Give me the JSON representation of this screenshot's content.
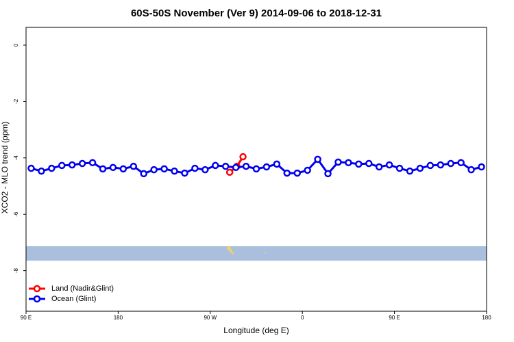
{
  "chart_data": {
    "type": "line",
    "title": "60S-50S November (Ver 9)   2014-09-06 to 2018-12-31",
    "xlabel": "Longitude (deg E)",
    "ylabel": "XCO2 - MLO trend (ppm)",
    "xlim": [
      90,
      540
    ],
    "xticks": [
      {
        "value": 90,
        "label": "90 E"
      },
      180,
      {
        "value": 270,
        "label": "90 W"
      },
      {
        "value": 360,
        "label": "0"
      },
      {
        "value": 450,
        "label": "90 E"
      },
      {
        "value": 540,
        "label": "180"
      }
    ],
    "ylim": [
      -9.44,
      0.63
    ],
    "yticks": [
      0,
      -2,
      -4,
      -6,
      -8
    ],
    "legend": "bottom-left",
    "series": [
      {
        "name": "Land (Nadir&Glint)",
        "color": "#ff0000",
        "x": [
          289,
          296,
          302
        ],
        "values": [
          -4.51,
          -4.3,
          -3.96
        ]
      },
      {
        "name": "Ocean (Glint)",
        "color": "#0000ee",
        "x": [
          95,
          105,
          115,
          125,
          135,
          145,
          155,
          165,
          175,
          185,
          195,
          205,
          215,
          225,
          235,
          245,
          255,
          265,
          275,
          285,
          295,
          305,
          315,
          325,
          335,
          345,
          355,
          365,
          375,
          385,
          395,
          405,
          415,
          425,
          435,
          445,
          455,
          465,
          475,
          485,
          495,
          505,
          515,
          525,
          535
        ],
        "values": [
          -4.37,
          -4.47,
          -4.37,
          -4.27,
          -4.25,
          -4.2,
          -4.17,
          -4.39,
          -4.34,
          -4.39,
          -4.3,
          -4.56,
          -4.42,
          -4.39,
          -4.47,
          -4.54,
          -4.37,
          -4.42,
          -4.27,
          -4.3,
          -4.34,
          -4.3,
          -4.39,
          -4.32,
          -4.22,
          -4.54,
          -4.54,
          -4.44,
          -4.05,
          -4.56,
          -4.15,
          -4.17,
          -4.22,
          -4.2,
          -4.32,
          -4.25,
          -4.37,
          -4.47,
          -4.37,
          -4.27,
          -4.25,
          -4.2,
          -4.17,
          -4.42,
          -4.32
        ]
      }
    ]
  }
}
